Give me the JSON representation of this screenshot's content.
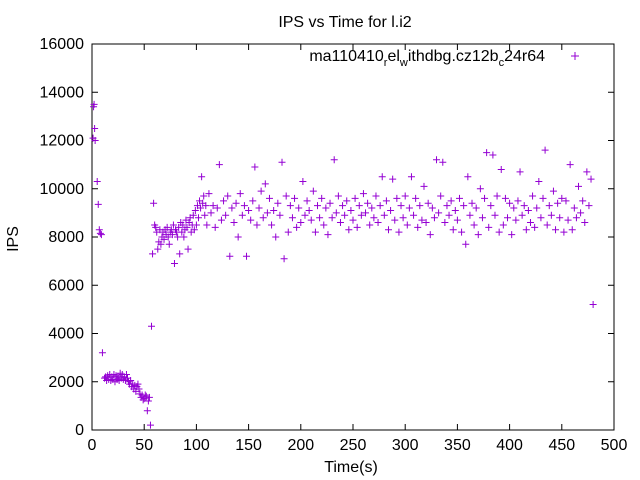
{
  "chart_data": {
    "type": "scatter",
    "title": "IPS vs Time for l.i2",
    "xlabel": "Time(s)",
    "ylabel": "IPS",
    "xlim": [
      0,
      500
    ],
    "ylim": [
      0,
      16000
    ],
    "x_ticks": [
      "0",
      "50",
      "100",
      "150",
      "200",
      "250",
      "300",
      "350",
      "400",
      "450",
      "500"
    ],
    "y_ticks": [
      "0",
      "2000",
      "4000",
      "6000",
      "8000",
      "10000",
      "12000",
      "14000",
      "16000"
    ],
    "grid": false,
    "legend_position": "top-right",
    "marker": "+",
    "series": [
      {
        "name_parts": [
          "ma110410",
          "r",
          "el",
          "w",
          "ithdbg.cz12b",
          "c",
          "24r64"
        ],
        "color": "#9400d3",
        "points": [
          [
            1,
            12100
          ],
          [
            1.5,
            13400
          ],
          [
            2,
            13500
          ],
          [
            2.5,
            12500
          ],
          [
            3,
            12000
          ],
          [
            5,
            10300
          ],
          [
            6,
            9350
          ],
          [
            7,
            8300
          ],
          [
            8,
            8150
          ],
          [
            9,
            8100
          ],
          [
            10,
            3200
          ],
          [
            12,
            2150
          ],
          [
            13,
            2200
          ],
          [
            14,
            2050
          ],
          [
            15,
            2250
          ],
          [
            16,
            2100
          ],
          [
            17,
            2300
          ],
          [
            18,
            2050
          ],
          [
            19,
            2200
          ],
          [
            20,
            2100
          ],
          [
            21,
            2300
          ],
          [
            22,
            2000
          ],
          [
            23,
            2250
          ],
          [
            24,
            2100
          ],
          [
            25,
            2200
          ],
          [
            26,
            2050
          ],
          [
            27,
            2350
          ],
          [
            28,
            2150
          ],
          [
            29,
            2300
          ],
          [
            30,
            2100
          ],
          [
            31,
            2200
          ],
          [
            32,
            2050
          ],
          [
            33,
            2300
          ],
          [
            34,
            2150
          ],
          [
            35,
            2000
          ],
          [
            36,
            1900
          ],
          [
            37,
            2050
          ],
          [
            38,
            1800
          ],
          [
            39,
            1900
          ],
          [
            40,
            1700
          ],
          [
            41,
            1850
          ],
          [
            42,
            1600
          ],
          [
            43,
            1800
          ],
          [
            44,
            1900
          ],
          [
            45,
            1700
          ],
          [
            46,
            1500
          ],
          [
            47,
            1350
          ],
          [
            48,
            1450
          ],
          [
            49,
            1250
          ],
          [
            50,
            1300
          ],
          [
            51,
            1450
          ],
          [
            52,
            1400
          ],
          [
            53,
            800
          ],
          [
            54,
            1200
          ],
          [
            55,
            1350
          ],
          [
            56,
            200
          ],
          [
            57,
            4300
          ],
          [
            58,
            7300
          ],
          [
            59,
            9400
          ],
          [
            60,
            8500
          ],
          [
            61,
            8400
          ],
          [
            62,
            8200
          ],
          [
            63,
            7500
          ],
          [
            64,
            7800
          ],
          [
            65,
            8300
          ],
          [
            66,
            7700
          ],
          [
            67,
            8000
          ],
          [
            68,
            8200
          ],
          [
            69,
            7900
          ],
          [
            70,
            8300
          ],
          [
            71,
            8100
          ],
          [
            72,
            8400
          ],
          [
            73,
            8000
          ],
          [
            74,
            7700
          ],
          [
            75,
            8200
          ],
          [
            76,
            8300
          ],
          [
            77,
            8100
          ],
          [
            78,
            8500
          ],
          [
            79,
            6900
          ],
          [
            80,
            8300
          ],
          [
            81,
            8200
          ],
          [
            82,
            8000
          ],
          [
            83,
            8400
          ],
          [
            84,
            7300
          ],
          [
            85,
            8600
          ],
          [
            86,
            8200
          ],
          [
            87,
            8500
          ],
          [
            88,
            8000
          ],
          [
            89,
            8300
          ],
          [
            90,
            8700
          ],
          [
            91,
            8400
          ],
          [
            92,
            7500
          ],
          [
            93,
            8600
          ],
          [
            94,
            8800
          ],
          [
            95,
            8200
          ],
          [
            96,
            8500
          ],
          [
            97,
            8900
          ],
          [
            98,
            8300
          ],
          [
            99,
            9100
          ],
          [
            100,
            8500
          ],
          [
            101,
            9300
          ],
          [
            102,
            8800
          ],
          [
            103,
            9500
          ],
          [
            104,
            9200
          ],
          [
            105,
            10500
          ],
          [
            106,
            9400
          ],
          [
            107,
            9700
          ],
          [
            108,
            8900
          ],
          [
            109,
            9300
          ],
          [
            110,
            8500
          ],
          [
            112,
            9800
          ],
          [
            114,
            9000
          ],
          [
            116,
            9300
          ],
          [
            118,
            8400
          ],
          [
            120,
            9200
          ],
          [
            122,
            11000
          ],
          [
            124,
            8700
          ],
          [
            126,
            9500
          ],
          [
            128,
            8900
          ],
          [
            130,
            9700
          ],
          [
            132,
            7200
          ],
          [
            134,
            9200
          ],
          [
            136,
            8600
          ],
          [
            138,
            9400
          ],
          [
            140,
            8000
          ],
          [
            142,
            9800
          ],
          [
            144,
            8900
          ],
          [
            146,
            9300
          ],
          [
            148,
            7200
          ],
          [
            150,
            9100
          ],
          [
            152,
            8700
          ],
          [
            154,
            9500
          ],
          [
            156,
            10900
          ],
          [
            158,
            8500
          ],
          [
            160,
            9200
          ],
          [
            162,
            9900
          ],
          [
            164,
            8800
          ],
          [
            166,
            10200
          ],
          [
            168,
            9000
          ],
          [
            170,
            9600
          ],
          [
            172,
            8500
          ],
          [
            174,
            9100
          ],
          [
            176,
            8000
          ],
          [
            178,
            9400
          ],
          [
            180,
            8900
          ],
          [
            182,
            11100
          ],
          [
            184,
            7100
          ],
          [
            186,
            9700
          ],
          [
            188,
            8200
          ],
          [
            190,
            9300
          ],
          [
            192,
            8800
          ],
          [
            194,
            9600
          ],
          [
            196,
            8400
          ],
          [
            198,
            9200
          ],
          [
            200,
            8600
          ],
          [
            202,
            10300
          ],
          [
            204,
            8900
          ],
          [
            206,
            9500
          ],
          [
            208,
            9100
          ],
          [
            210,
            8700
          ],
          [
            212,
            9900
          ],
          [
            214,
            8200
          ],
          [
            216,
            9300
          ],
          [
            218,
            8800
          ],
          [
            220,
            9600
          ],
          [
            222,
            8500
          ],
          [
            224,
            9200
          ],
          [
            226,
            8100
          ],
          [
            228,
            9400
          ],
          [
            230,
            8800
          ],
          [
            232,
            11200
          ],
          [
            234,
            9000
          ],
          [
            236,
            9700
          ],
          [
            238,
            8600
          ],
          [
            240,
            9300
          ],
          [
            242,
            8900
          ],
          [
            244,
            9500
          ],
          [
            246,
            8300
          ],
          [
            248,
            9100
          ],
          [
            250,
            8700
          ],
          [
            252,
            9600
          ],
          [
            254,
            8400
          ],
          [
            256,
            9300
          ],
          [
            258,
            8900
          ],
          [
            260,
            9800
          ],
          [
            262,
            9000
          ],
          [
            264,
            9400
          ],
          [
            266,
            8500
          ],
          [
            268,
            9200
          ],
          [
            270,
            8800
          ],
          [
            272,
            9700
          ],
          [
            274,
            8600
          ],
          [
            276,
            9300
          ],
          [
            278,
            10500
          ],
          [
            280,
            8900
          ],
          [
            282,
            9500
          ],
          [
            284,
            8300
          ],
          [
            286,
            9100
          ],
          [
            288,
            10400
          ],
          [
            290,
            8700
          ],
          [
            292,
            9600
          ],
          [
            294,
            8200
          ],
          [
            296,
            9300
          ],
          [
            298,
            8800
          ],
          [
            300,
            9700
          ],
          [
            302,
            8500
          ],
          [
            304,
            9200
          ],
          [
            306,
            10500
          ],
          [
            308,
            8900
          ],
          [
            310,
            9600
          ],
          [
            312,
            8400
          ],
          [
            314,
            9300
          ],
          [
            316,
            8700
          ],
          [
            318,
            10100
          ],
          [
            320,
            8600
          ],
          [
            322,
            9400
          ],
          [
            324,
            8100
          ],
          [
            326,
            9200
          ],
          [
            328,
            8800
          ],
          [
            330,
            11200
          ],
          [
            332,
            9000
          ],
          [
            334,
            9700
          ],
          [
            336,
            11100
          ],
          [
            338,
            8600
          ],
          [
            340,
            9300
          ],
          [
            342,
            8900
          ],
          [
            344,
            9500
          ],
          [
            346,
            8300
          ],
          [
            348,
            9100
          ],
          [
            350,
            8700
          ],
          [
            352,
            9600
          ],
          [
            354,
            8200
          ],
          [
            356,
            9300
          ],
          [
            358,
            7700
          ],
          [
            360,
            10500
          ],
          [
            362,
            8900
          ],
          [
            364,
            9400
          ],
          [
            366,
            8500
          ],
          [
            368,
            9200
          ],
          [
            370,
            8100
          ],
          [
            372,
            10000
          ],
          [
            374,
            8800
          ],
          [
            376,
            9600
          ],
          [
            378,
            11500
          ],
          [
            380,
            8400
          ],
          [
            382,
            9300
          ],
          [
            384,
            11400
          ],
          [
            386,
            8900
          ],
          [
            388,
            9700
          ],
          [
            390,
            8200
          ],
          [
            392,
            10800
          ],
          [
            394,
            8500
          ],
          [
            396,
            9600
          ],
          [
            398,
            8800
          ],
          [
            400,
            9400
          ],
          [
            402,
            8100
          ],
          [
            404,
            9200
          ],
          [
            406,
            8700
          ],
          [
            408,
            9500
          ],
          [
            410,
            10700
          ],
          [
            412,
            8900
          ],
          [
            414,
            9300
          ],
          [
            416,
            8300
          ],
          [
            418,
            9100
          ],
          [
            420,
            8600
          ],
          [
            422,
            9700
          ],
          [
            424,
            8400
          ],
          [
            426,
            9200
          ],
          [
            428,
            10300
          ],
          [
            430,
            8800
          ],
          [
            432,
            9600
          ],
          [
            434,
            11600
          ],
          [
            436,
            8500
          ],
          [
            438,
            9300
          ],
          [
            440,
            8900
          ],
          [
            442,
            9900
          ],
          [
            444,
            8300
          ],
          [
            446,
            9400
          ],
          [
            448,
            8800
          ],
          [
            450,
            9600
          ],
          [
            452,
            8200
          ],
          [
            454,
            9500
          ],
          [
            456,
            8700
          ],
          [
            458,
            11000
          ],
          [
            460,
            8300
          ],
          [
            462,
            9200
          ],
          [
            464,
            8800
          ],
          [
            466,
            10100
          ],
          [
            468,
            9000
          ],
          [
            470,
            9500
          ],
          [
            472,
            8600
          ],
          [
            474,
            10700
          ],
          [
            476,
            9300
          ],
          [
            478,
            10400
          ],
          [
            480,
            5200
          ]
        ]
      }
    ]
  }
}
